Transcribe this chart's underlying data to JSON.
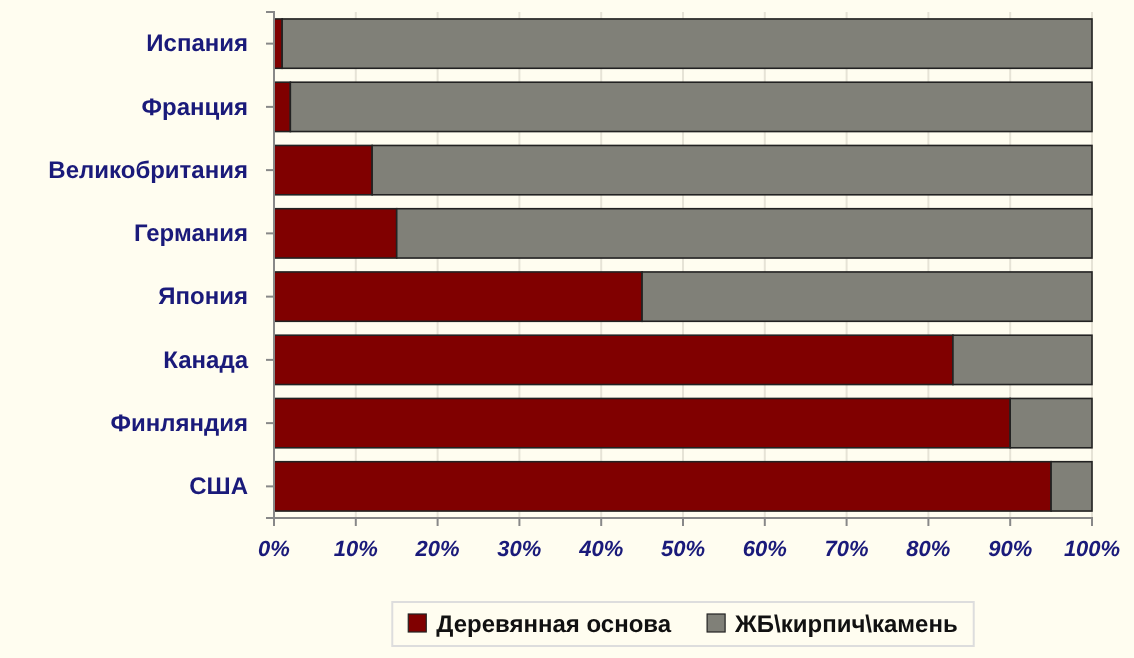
{
  "chart_data": {
    "type": "bar",
    "orientation": "horizontal",
    "stacked": true,
    "categories": [
      "Испания",
      "Франция",
      "Великобритания",
      "Германия",
      "Япония",
      "Канада",
      "Финляндия",
      "США"
    ],
    "series": [
      {
        "name": "Деревянная основа",
        "color": "#800000",
        "values": [
          1,
          2,
          12,
          15,
          45,
          83,
          90,
          95
        ]
      },
      {
        "name": "ЖБ\\кирпич\\камень",
        "color": "#808078",
        "values": [
          99,
          98,
          88,
          85,
          55,
          17,
          10,
          5
        ]
      }
    ],
    "xlim": [
      0,
      100
    ],
    "xticks": [
      {
        "value": 0,
        "label": "0%"
      },
      {
        "value": 10,
        "label": "10%"
      },
      {
        "value": 20,
        "label": "20%"
      },
      {
        "value": 30,
        "label": "30%"
      },
      {
        "value": 40,
        "label": "40%"
      },
      {
        "value": 50,
        "label": "50%"
      },
      {
        "value": 60,
        "label": "60%"
      },
      {
        "value": 70,
        "label": "70%"
      },
      {
        "value": 80,
        "label": "80%"
      },
      {
        "value": 90,
        "label": "90%"
      },
      {
        "value": 100,
        "label": "100%"
      }
    ],
    "grid": "x",
    "legend": "bottom"
  }
}
